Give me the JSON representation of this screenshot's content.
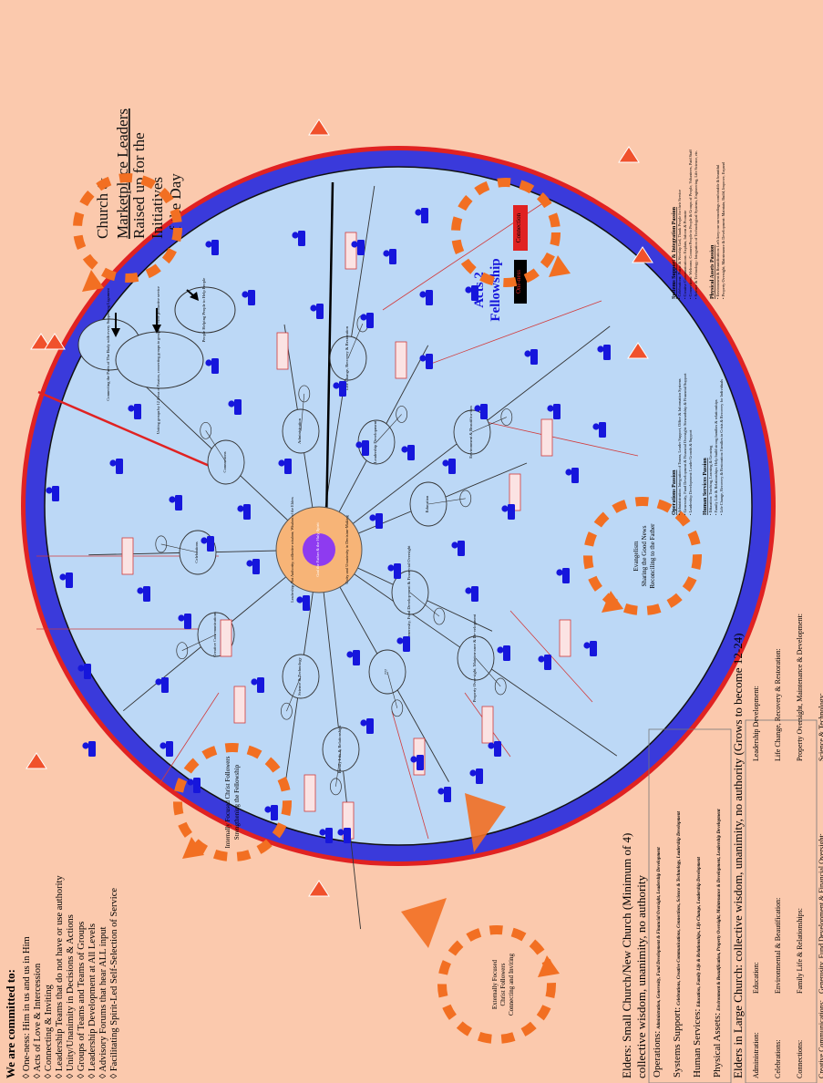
{
  "commitments": {
    "heading": "We are committed to:",
    "items": [
      "◊ One-ness: Him in us and us in Him",
      "◊ Acts of Love & Intercession",
      "◊ Connecting & Inviting",
      "◊ Leadership Teams that do not have or use authority",
      "◊ Unity/Unanimity in Decisions & Actions",
      "◊ Groups of Teams and Teams of Groups",
      "◊ Leadership Development at All Levels",
      "◊ Advisory Forums that hear ALL input",
      "◊ Facilitating Spirit-Led Self-Selection of Service"
    ]
  },
  "hub": {
    "center_label": "God the Father & the Holy Spirit",
    "ring_top": "Leadership: Not Authority; collective wisdom; Wisdom of the Elders",
    "ring_bottom": "Unity and Unanimity in Decision-Making"
  },
  "title": {
    "line1": "Church &",
    "line2": "Marketplace Leaders",
    "line3": "Raised up for the",
    "line4": "Initiatives",
    "line5": "of the Day"
  },
  "acts2": {
    "line1": "Acts 2",
    "line2": "Fellowship"
  },
  "buttons": {
    "oneness": "One-ness",
    "connection": "Connection"
  },
  "ministries": [
    "Connections",
    "Celebrations",
    "Creative Com-munications",
    "Science & Technology",
    "Family Life & Relationships",
    "???",
    "Property Over-sight, Mainten-ance & De-velopment",
    "Generosity, Fund Develop-ment & Finan-cial Oversight",
    "Education",
    "Environment & Beautifica-tion",
    "Leadership Development",
    "Life Change, Recovery & Restoration",
    "Administration"
  ],
  "groups": [
    "Connecting the Parts of The Body with every Supporting Ligament",
    "Uniting groups by 12 Areas of Passion, connecting groups to groups for more productive service",
    "People Helping People to Help People"
  ],
  "evangelism": {
    "title": "Evangelism",
    "line2": "Sharing the Good News",
    "line3": "Reconciling to the Father"
  },
  "internal": {
    "line1": "Internally Focused Christ Followers",
    "line2": "Strengthening the Fellowship"
  },
  "external": {
    "line1": "Externally Focused",
    "line2": "Christ Followers",
    "line3": "Connecting and Inviting"
  },
  "passions": {
    "operations": {
      "title": "Operations Passion",
      "items": [
        "Administration: Integration of Teams, Leader Support, Office & Information Systems",
        "Generosity, Fund Development & Financial Oversight: Stewardship & Financial Support",
        "Leadership Development: Leader Growth & Support"
      ]
    },
    "human": {
      "title": "Human Services Passion",
      "items": [
        "Education: Teaching, Learning & Growing",
        "Family Life & Relationships: Help build strong families & relationships",
        "Life Change, Recovery & Restoration: Families in Crisis & Recovery for Individuals"
      ]
    },
    "systems": {
      "title": "Systems Support & Integration Passion",
      "items": [
        "Celebrations: Praise & Worship God, Thank People for their Service",
        "Creative Communications: Explain, Inform & Promote",
        "Connections: Welcome, Connect People to People & Groups of People, Volunteers, Paid Staff",
        "Science & Technology: Integration of Technological Systems, Engineering, Life Science, etc."
      ]
    },
    "physical": {
      "title": "Physical Assets Passion",
      "items": [
        "Environment & Beautification: Let's keep our surroundings comfortable & beautiful",
        "Property Oversight, Maintenance & Development: Maintain, Build, Improve, Expand"
      ]
    }
  },
  "elders_small": {
    "title": "Elders: Small Church/New Church (Minimum of 4)",
    "subtitle": "collective wisdom, unanimity, no authority",
    "operations_label": "Operations:",
    "operations_text": "Administration, Generosity, Fund Development & Financial Oversight, Leadership Development",
    "systems_label": "Systems Support:",
    "systems_text": "Celebrations, Creative Communications, Connections, Science & Technology, Leadership Development",
    "human_label": "Human Services:",
    "human_text": "Education, Family Life & Relationships, Life Change, Leadership Development",
    "physical_label": "Physical Assets:",
    "physical_text": "Environment & Beautification, Property Oversight, Maintenance & Development, Leadership Development"
  },
  "elders_large": {
    "title": "Elders in Large Church: collective wisdom, unanimity, no authority (Grows to become 12-24)",
    "col1": [
      "Administration:",
      "Celebrations:",
      "Connections:",
      "Creative Communications:"
    ],
    "col2": [
      "Education:",
      "Environmental & Beautification:",
      "Family Life & Relationships:",
      "Generosity, Fund Development & Financial Oversight:"
    ],
    "col3": [
      "Leadership Development:",
      "Life Change, Recovery & Restoration:",
      "Property Oversight, Maintenance & Development:",
      "Science & Technology:"
    ]
  },
  "colors": {
    "background": "#fbc9ad",
    "ellipse_fill": "#bcd8f6",
    "ring_blue": "#3a3adb",
    "ring_red": "#e02222",
    "hub": "#f7b477",
    "center": "#8e3bf0",
    "person": "#1616dc",
    "orange": "#f26f22"
  }
}
